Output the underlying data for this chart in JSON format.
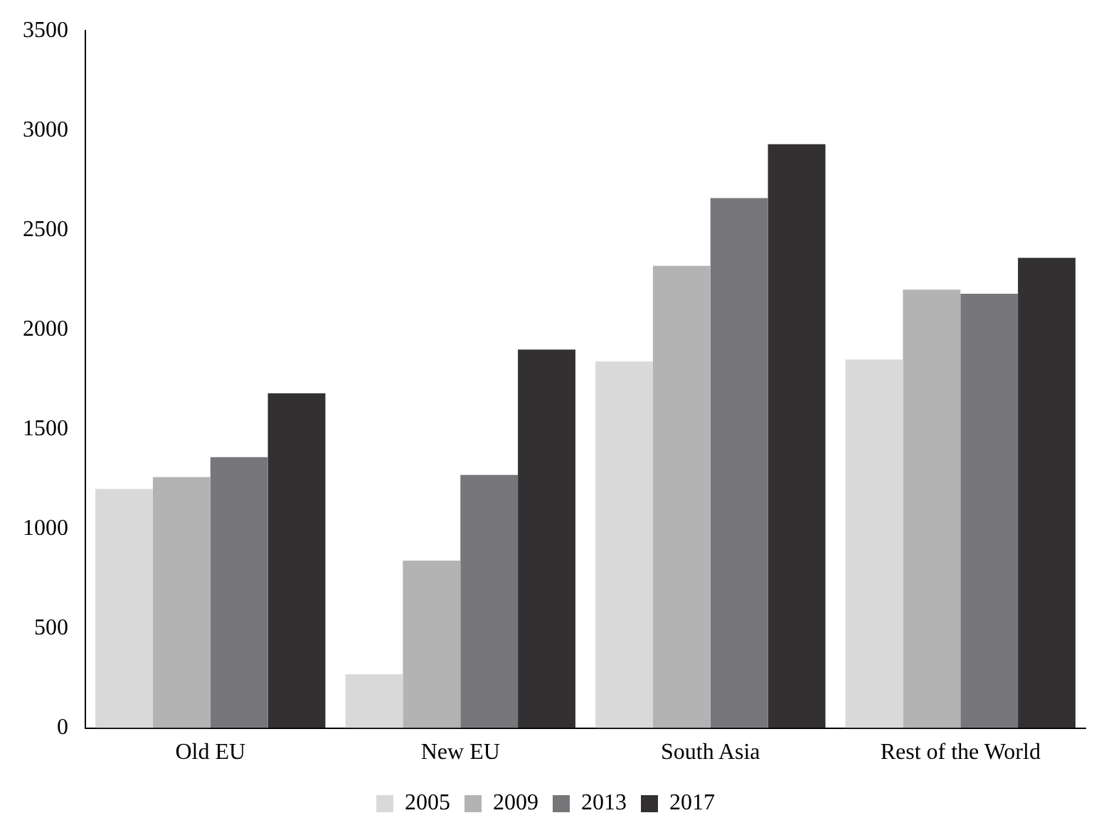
{
  "chart_data": {
    "type": "bar",
    "categories": [
      "Old EU",
      "New EU",
      "South Asia",
      "Rest of the World"
    ],
    "series": [
      {
        "name": "2005",
        "color": "#d9d9d9",
        "values": [
          1200,
          270,
          1840,
          1850
        ]
      },
      {
        "name": "2009",
        "color": "#b3b3b3",
        "values": [
          1260,
          840,
          2320,
          2200
        ]
      },
      {
        "name": "2013",
        "color": "#77777b",
        "values": [
          1360,
          1270,
          2660,
          2180
        ]
      },
      {
        "name": "2017",
        "color": "#323031",
        "values": [
          1680,
          1900,
          2930,
          2360
        ]
      }
    ],
    "ylim": [
      0,
      3500
    ],
    "yticks": [
      0,
      500,
      1000,
      1500,
      2000,
      2500,
      3000,
      3500
    ],
    "grid": false,
    "legend": "bottom"
  }
}
